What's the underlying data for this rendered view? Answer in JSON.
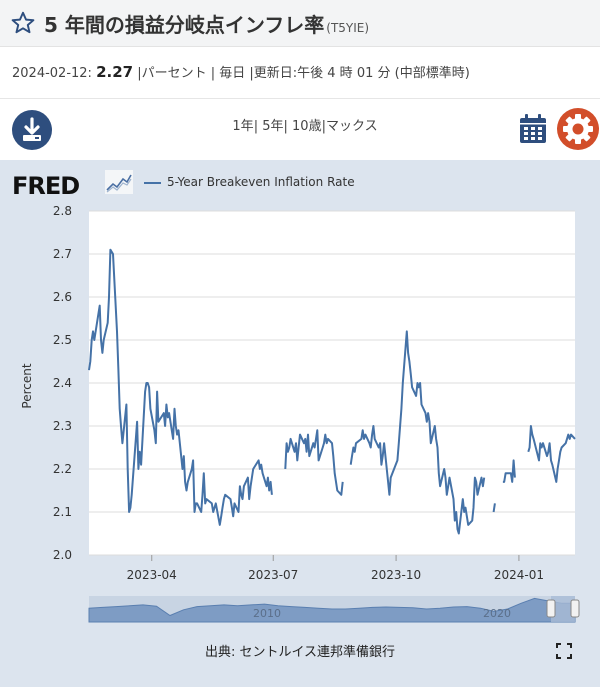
{
  "header": {
    "title": "5 年間の損益分岐点インフレ率",
    "series_id": "(T5YIE)"
  },
  "meta": {
    "date": "2024-02-12:",
    "value": "2.27",
    "rest": "|パーセント | 毎日 |更新日:午後 4 時 01 分 (中部標準時)"
  },
  "toolbar": {
    "ranges": [
      "1年",
      "5年",
      "10歳",
      "マックス"
    ],
    "sep": "|"
  },
  "icons": {
    "download": "download-icon",
    "calendar": "calendar-icon",
    "settings": "gear-icon",
    "favorite": "star-icon",
    "fullscreen": "fullscreen-icon"
  },
  "colors": {
    "line": "#4572a7",
    "accent_gear": "#d24e2a",
    "accent_download": "#2e4e7e",
    "panel": "#dce4ee"
  },
  "brand": {
    "logo": "FRED"
  },
  "legend": {
    "label": "5-Year Breakeven Inflation Rate"
  },
  "source": {
    "text": "出典: セントルイス連邦準備銀行"
  },
  "chart_data": {
    "type": "line",
    "ylabel": "Percent",
    "ylim": [
      2.0,
      2.8
    ],
    "yticks": [
      "2.0",
      "2.1",
      "2.2",
      "2.3",
      "2.4",
      "2.5",
      "2.6",
      "2.7",
      "2.8"
    ],
    "xlim": [
      "2023-02-13",
      "2024-02-12"
    ],
    "xticks": [
      {
        "date": "2023-04-01",
        "label": "2023-04"
      },
      {
        "date": "2023-07-01",
        "label": "2023-07"
      },
      {
        "date": "2023-10-01",
        "label": "2023-10"
      },
      {
        "date": "2024-01-01",
        "label": "2024-01"
      }
    ],
    "grid": true,
    "series": [
      {
        "name": "5-Year Breakeven Inflation Rate",
        "points": [
          [
            "2023-02-13",
            2.43
          ],
          [
            "2023-02-14",
            2.45
          ],
          [
            "2023-02-15",
            2.5
          ],
          [
            "2023-02-16",
            2.52
          ],
          [
            "2023-02-17",
            2.5
          ],
          [
            "2023-02-21",
            2.58
          ],
          [
            "2023-02-22",
            2.5
          ],
          [
            "2023-02-23",
            2.47
          ],
          [
            "2023-02-24",
            2.5
          ],
          [
            "2023-02-27",
            2.54
          ],
          [
            "2023-02-28",
            2.6
          ],
          [
            "2023-03-01",
            2.71
          ],
          [
            "2023-03-03",
            2.7
          ],
          [
            "2023-03-06",
            2.52
          ],
          [
            "2023-03-07",
            2.43
          ],
          [
            "2023-03-08",
            2.34
          ],
          [
            "2023-03-09",
            2.3
          ],
          [
            "2023-03-10",
            2.26
          ],
          [
            "2023-03-13",
            2.35
          ],
          [
            "2023-03-14",
            2.2
          ],
          [
            "2023-03-15",
            2.1
          ],
          [
            "2023-03-16",
            2.11
          ],
          [
            "2023-03-17",
            2.14
          ],
          [
            "2023-03-21",
            2.31
          ],
          [
            "2023-03-22",
            2.2
          ],
          [
            "2023-03-23",
            2.24
          ],
          [
            "2023-03-24",
            2.21
          ],
          [
            "2023-03-27",
            2.38
          ],
          [
            "2023-03-28",
            2.4
          ],
          [
            "2023-03-29",
            2.4
          ],
          [
            "2023-03-30",
            2.39
          ],
          [
            "2023-03-31",
            2.34
          ],
          [
            "2023-04-03",
            2.29
          ],
          [
            "2023-04-04",
            2.26
          ],
          [
            "2023-04-05",
            2.38
          ],
          [
            "2023-04-06",
            2.31
          ],
          [
            "2023-04-10",
            2.33
          ],
          [
            "2023-04-11",
            2.3
          ],
          [
            "2023-04-12",
            2.35
          ],
          [
            "2023-04-13",
            2.32
          ],
          [
            "2023-04-14",
            2.33
          ],
          [
            "2023-04-17",
            2.27
          ],
          [
            "2023-04-18",
            2.34
          ],
          [
            "2023-04-19",
            2.3
          ],
          [
            "2023-04-20",
            2.28
          ],
          [
            "2023-04-21",
            2.29
          ],
          [
            "2023-04-24",
            2.2
          ],
          [
            "2023-04-25",
            2.23
          ],
          [
            "2023-04-26",
            2.17
          ],
          [
            "2023-04-27",
            2.15
          ],
          [
            "2023-04-28",
            2.17
          ],
          [
            "2023-05-01",
            2.2
          ],
          [
            "2023-05-02",
            2.22
          ],
          [
            "2023-05-03",
            2.1
          ],
          [
            "2023-05-04",
            2.12
          ],
          [
            "2023-05-05",
            2.12
          ],
          [
            "2023-05-08",
            2.1
          ],
          [
            "2023-05-09",
            2.14
          ],
          [
            "2023-05-10",
            2.19
          ],
          [
            "2023-05-11",
            2.12
          ],
          [
            "2023-05-12",
            2.13
          ],
          [
            "2023-05-16",
            2.12
          ],
          [
            "2023-05-17",
            2.1
          ],
          [
            "2023-05-18",
            2.11
          ],
          [
            "2023-05-19",
            2.12
          ],
          [
            "2023-05-22",
            2.07
          ],
          [
            "2023-05-23",
            2.09
          ],
          [
            "2023-05-24",
            2.11
          ],
          [
            "2023-05-25",
            2.13
          ],
          [
            "2023-05-26",
            2.14
          ],
          [
            "2023-05-30",
            2.13
          ],
          [
            "2023-05-31",
            2.11
          ],
          [
            "2023-06-01",
            2.09
          ],
          [
            "2023-06-02",
            2.12
          ],
          [
            "2023-06-05",
            2.1
          ],
          [
            "2023-06-06",
            2.16
          ],
          [
            "2023-06-07",
            2.14
          ],
          [
            "2023-06-08",
            2.13
          ],
          [
            "2023-06-09",
            2.16
          ],
          [
            "2023-06-12",
            2.18
          ],
          [
            "2023-06-13",
            2.13
          ],
          [
            "2023-06-14",
            2.16
          ],
          [
            "2023-06-15",
            2.18
          ],
          [
            "2023-06-16",
            2.2
          ],
          [
            "2023-06-20",
            2.22
          ],
          [
            "2023-06-21",
            2.2
          ],
          [
            "2023-06-22",
            2.21
          ],
          [
            "2023-06-23",
            2.19
          ],
          [
            "2023-06-26",
            2.16
          ],
          [
            "2023-06-27",
            2.18
          ],
          [
            "2023-06-28",
            2.15
          ],
          [
            "2023-06-29",
            2.17
          ],
          [
            "2023-06-30",
            2.14
          ],
          [
            "2023-07-10",
            2.2
          ],
          [
            "2023-07-11",
            2.26
          ],
          [
            "2023-07-12",
            2.24
          ],
          [
            "2023-07-13",
            2.25
          ],
          [
            "2023-07-14",
            2.27
          ],
          [
            "2023-07-17",
            2.24
          ],
          [
            "2023-07-18",
            2.26
          ],
          [
            "2023-07-19",
            2.22
          ],
          [
            "2023-07-20",
            2.25
          ],
          [
            "2023-07-21",
            2.28
          ],
          [
            "2023-07-24",
            2.26
          ],
          [
            "2023-07-25",
            2.27
          ],
          [
            "2023-07-26",
            2.24
          ],
          [
            "2023-07-27",
            2.28
          ],
          [
            "2023-07-28",
            2.23
          ],
          [
            "2023-07-31",
            2.26
          ],
          [
            "2023-08-01",
            2.25
          ],
          [
            "2023-08-02",
            2.27
          ],
          [
            "2023-08-03",
            2.29
          ],
          [
            "2023-08-04",
            2.22
          ],
          [
            "2023-08-07",
            2.25
          ],
          [
            "2023-08-08",
            2.26
          ],
          [
            "2023-08-09",
            2.28
          ],
          [
            "2023-08-10",
            2.26
          ],
          [
            "2023-08-11",
            2.27
          ],
          [
            "2023-08-14",
            2.26
          ],
          [
            "2023-08-15",
            2.23
          ],
          [
            "2023-08-16",
            2.19
          ],
          [
            "2023-08-17",
            2.17
          ],
          [
            "2023-08-18",
            2.15
          ],
          [
            "2023-08-21",
            2.14
          ],
          [
            "2023-08-22",
            2.17
          ],
          [
            "2023-08-28",
            2.21
          ],
          [
            "2023-08-29",
            2.23
          ],
          [
            "2023-08-30",
            2.25
          ],
          [
            "2023-08-31",
            2.24
          ],
          [
            "2023-09-01",
            2.26
          ],
          [
            "2023-09-05",
            2.27
          ],
          [
            "2023-09-06",
            2.29
          ],
          [
            "2023-09-07",
            2.27
          ],
          [
            "2023-09-08",
            2.28
          ],
          [
            "2023-09-11",
            2.26
          ],
          [
            "2023-09-12",
            2.25
          ],
          [
            "2023-09-13",
            2.28
          ],
          [
            "2023-09-14",
            2.3
          ],
          [
            "2023-09-15",
            2.27
          ],
          [
            "2023-09-18",
            2.25
          ],
          [
            "2023-09-19",
            2.26
          ],
          [
            "2023-09-20",
            2.21
          ],
          [
            "2023-09-21",
            2.23
          ],
          [
            "2023-09-22",
            2.26
          ],
          [
            "2023-09-25",
            2.17
          ],
          [
            "2023-09-26",
            2.14
          ],
          [
            "2023-09-27",
            2.18
          ],
          [
            "2023-10-02",
            2.22
          ],
          [
            "2023-10-03",
            2.26
          ],
          [
            "2023-10-04",
            2.3
          ],
          [
            "2023-10-05",
            2.34
          ],
          [
            "2023-10-06",
            2.4
          ],
          [
            "2023-10-09",
            2.52
          ],
          [
            "2023-10-10",
            2.47
          ],
          [
            "2023-10-11",
            2.45
          ],
          [
            "2023-10-12",
            2.42
          ],
          [
            "2023-10-13",
            2.39
          ],
          [
            "2023-10-16",
            2.37
          ],
          [
            "2023-10-17",
            2.4
          ],
          [
            "2023-10-18",
            2.39
          ],
          [
            "2023-10-19",
            2.4
          ],
          [
            "2023-10-20",
            2.35
          ],
          [
            "2023-10-23",
            2.33
          ],
          [
            "2023-10-24",
            2.31
          ],
          [
            "2023-10-25",
            2.33
          ],
          [
            "2023-10-26",
            2.31
          ],
          [
            "2023-10-27",
            2.26
          ],
          [
            "2023-10-30",
            2.3
          ],
          [
            "2023-10-31",
            2.27
          ],
          [
            "2023-11-01",
            2.25
          ],
          [
            "2023-11-02",
            2.19
          ],
          [
            "2023-11-03",
            2.16
          ],
          [
            "2023-11-06",
            2.2
          ],
          [
            "2023-11-07",
            2.18
          ],
          [
            "2023-11-08",
            2.14
          ],
          [
            "2023-11-09",
            2.16
          ],
          [
            "2023-11-10",
            2.18
          ],
          [
            "2023-11-13",
            2.13
          ],
          [
            "2023-11-14",
            2.08
          ],
          [
            "2023-11-15",
            2.1
          ],
          [
            "2023-11-16",
            2.06
          ],
          [
            "2023-11-17",
            2.05
          ],
          [
            "2023-11-20",
            2.13
          ],
          [
            "2023-11-21",
            2.1
          ],
          [
            "2023-11-22",
            2.11
          ],
          [
            "2023-11-24",
            2.07
          ],
          [
            "2023-11-27",
            2.08
          ],
          [
            "2023-11-28",
            2.11
          ],
          [
            "2023-11-29",
            2.18
          ],
          [
            "2023-11-30",
            2.17
          ],
          [
            "2023-12-01",
            2.14
          ],
          [
            "2023-12-04",
            2.18
          ],
          [
            "2023-12-05",
            2.16
          ],
          [
            "2023-12-06",
            2.18
          ],
          [
            "2023-12-13",
            2.1
          ],
          [
            "2023-12-14",
            2.12
          ],
          [
            "2023-12-20",
            2.17
          ],
          [
            "2023-12-21",
            2.17
          ],
          [
            "2023-12-22",
            2.19
          ],
          [
            "2023-12-26",
            2.19
          ],
          [
            "2023-12-27",
            2.17
          ],
          [
            "2023-12-28",
            2.22
          ],
          [
            "2023-12-29",
            2.18
          ],
          [
            "2024-01-08",
            2.24
          ],
          [
            "2024-01-09",
            2.25
          ],
          [
            "2024-01-10",
            2.3
          ],
          [
            "2024-01-11",
            2.28
          ],
          [
            "2024-01-12",
            2.27
          ],
          [
            "2024-01-16",
            2.22
          ],
          [
            "2024-01-17",
            2.26
          ],
          [
            "2024-01-18",
            2.25
          ],
          [
            "2024-01-19",
            2.26
          ],
          [
            "2024-01-22",
            2.23
          ],
          [
            "2024-01-23",
            2.24
          ],
          [
            "2024-01-24",
            2.26
          ],
          [
            "2024-01-25",
            2.22
          ],
          [
            "2024-01-26",
            2.21
          ],
          [
            "2024-01-29",
            2.17
          ],
          [
            "2024-01-30",
            2.2
          ],
          [
            "2024-01-31",
            2.22
          ],
          [
            "2024-02-01",
            2.24
          ],
          [
            "2024-02-02",
            2.25
          ],
          [
            "2024-02-05",
            2.26
          ],
          [
            "2024-02-06",
            2.27
          ],
          [
            "2024-02-07",
            2.28
          ],
          [
            "2024-02-08",
            2.27
          ],
          [
            "2024-02-09",
            2.28
          ],
          [
            "2024-02-12",
            2.27
          ]
        ]
      }
    ],
    "navigator": {
      "labels": [
        "2010",
        "2020"
      ],
      "profile": [
        1.7,
        1.8,
        1.9,
        2.0,
        2.1,
        1.95,
        0.8,
        1.5,
        1.9,
        2.0,
        2.1,
        2.0,
        2.1,
        2.2,
        2.0,
        1.9,
        1.8,
        1.7,
        1.6,
        1.6,
        1.7,
        1.8,
        1.85,
        1.8,
        1.75,
        1.6,
        1.7,
        1.85,
        1.9,
        1.7,
        1.3,
        1.6,
        2.3,
        2.9,
        2.6,
        2.3,
        2.3
      ]
    }
  }
}
